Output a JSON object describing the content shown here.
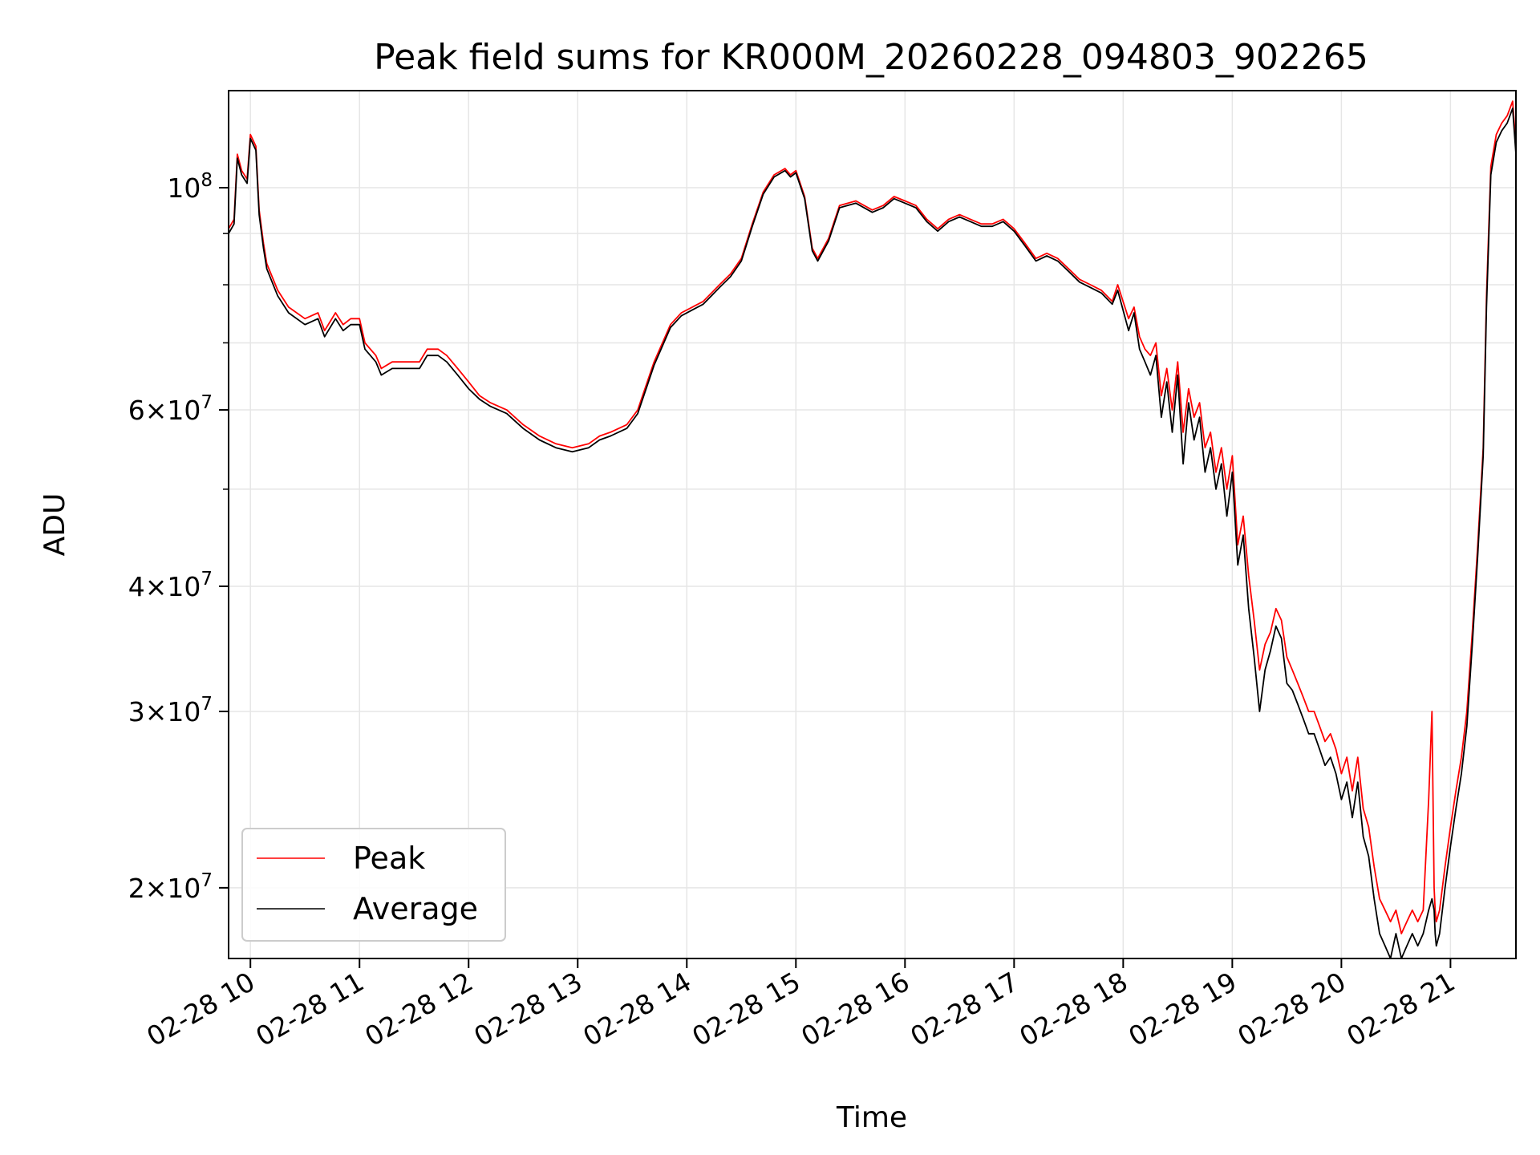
{
  "chart_data": {
    "type": "line",
    "title": "Peak field sums for KR000M_20260228_094803_902265",
    "xlabel": "Time",
    "ylabel": "ADU",
    "yscale": "log",
    "xlim": [
      9.8,
      21.6
    ],
    "ylim": [
      17000000,
      125000000
    ],
    "grid": true,
    "legend_location": "lower-left",
    "x_tick_values": [
      10,
      11,
      12,
      13,
      14,
      15,
      16,
      17,
      18,
      19,
      20,
      21
    ],
    "x_tick_labels": [
      "02-28 10",
      "02-28 11",
      "02-28 12",
      "02-28 13",
      "02-28 14",
      "02-28 15",
      "02-28 16",
      "02-28 17",
      "02-28 18",
      "02-28 19",
      "02-28 20",
      "02-28 21"
    ],
    "y_major_ticks": [
      {
        "value": 100000000,
        "mantissa": "",
        "base": "10",
        "exponent": "8"
      },
      {
        "value": 60000000,
        "mantissa": "6",
        "base": "10",
        "exponent": "7"
      },
      {
        "value": 40000000,
        "mantissa": "4",
        "base": "10",
        "exponent": "7"
      },
      {
        "value": 30000000,
        "mantissa": "3",
        "base": "10",
        "exponent": "7"
      },
      {
        "value": 20000000,
        "mantissa": "2",
        "base": "10",
        "exponent": "7"
      }
    ],
    "y_minor_ticks": [
      50000000,
      70000000,
      80000000,
      90000000
    ],
    "x_unit_note": "hours of day on 2026-02-28",
    "series": [
      {
        "name": "Peak",
        "color": "#ff0000",
        "x": [
          9.8,
          9.85,
          9.88,
          9.92,
          9.97,
          10.0,
          10.05,
          10.08,
          10.12,
          10.15,
          10.25,
          10.35,
          10.5,
          10.62,
          10.68,
          10.78,
          10.85,
          10.92,
          11.0,
          11.05,
          11.15,
          11.2,
          11.3,
          11.4,
          11.55,
          11.62,
          11.72,
          11.8,
          11.9,
          12.0,
          12.1,
          12.2,
          12.35,
          12.5,
          12.65,
          12.8,
          12.95,
          13.1,
          13.2,
          13.3,
          13.45,
          13.55,
          13.7,
          13.85,
          13.95,
          14.05,
          14.15,
          14.3,
          14.4,
          14.5,
          14.6,
          14.7,
          14.8,
          14.9,
          14.95,
          15.0,
          15.08,
          15.15,
          15.2,
          15.3,
          15.4,
          15.55,
          15.7,
          15.8,
          15.9,
          16.0,
          16.1,
          16.2,
          16.3,
          16.4,
          16.5,
          16.6,
          16.7,
          16.8,
          16.9,
          17.0,
          17.1,
          17.2,
          17.3,
          17.4,
          17.5,
          17.6,
          17.7,
          17.8,
          17.9,
          17.95,
          18.05,
          18.1,
          18.15,
          18.2,
          18.25,
          18.3,
          18.35,
          18.4,
          18.45,
          18.5,
          18.55,
          18.6,
          18.65,
          18.7,
          18.75,
          18.8,
          18.85,
          18.9,
          18.95,
          19.0,
          19.05,
          19.1,
          19.15,
          19.2,
          19.25,
          19.3,
          19.35,
          19.4,
          19.45,
          19.5,
          19.55,
          19.6,
          19.65,
          19.7,
          19.75,
          19.8,
          19.85,
          19.9,
          19.95,
          20.0,
          20.05,
          20.1,
          20.15,
          20.2,
          20.25,
          20.3,
          20.35,
          20.4,
          20.45,
          20.5,
          20.55,
          20.6,
          20.65,
          20.7,
          20.75,
          20.8,
          20.83,
          20.85,
          20.86,
          20.87,
          20.9,
          20.95,
          21.0,
          21.05,
          21.1,
          21.15,
          21.2,
          21.25,
          21.3,
          21.33,
          21.37,
          21.42,
          21.47,
          21.52,
          21.57,
          21.6
        ],
        "values": [
          91000000,
          93000000,
          108000000,
          104000000,
          102000000,
          113000000,
          110000000,
          95000000,
          88000000,
          84000000,
          79000000,
          76000000,
          74000000,
          75000000,
          72000000,
          75000000,
          73000000,
          74000000,
          74000000,
          70000000,
          68000000,
          66000000,
          67000000,
          67000000,
          67000000,
          69000000,
          69000000,
          68000000,
          66000000,
          64000000,
          62000000,
          61000000,
          60000000,
          58000000,
          56500000,
          55500000,
          55000000,
          55500000,
          56500000,
          57000000,
          58000000,
          60000000,
          67000000,
          73000000,
          75000000,
          76000000,
          77000000,
          80000000,
          82000000,
          85000000,
          92000000,
          99000000,
          103000000,
          104500000,
          103000000,
          104000000,
          98000000,
          87000000,
          85000000,
          89000000,
          96000000,
          97000000,
          95000000,
          96000000,
          98000000,
          97000000,
          96000000,
          93000000,
          91000000,
          93000000,
          94000000,
          93000000,
          92000000,
          92000000,
          93000000,
          91000000,
          88000000,
          85000000,
          86000000,
          85000000,
          83000000,
          81000000,
          80000000,
          79000000,
          77000000,
          80000000,
          74000000,
          76000000,
          71000000,
          69000000,
          68000000,
          70000000,
          62000000,
          66000000,
          60000000,
          67000000,
          57000000,
          63000000,
          59000000,
          61000000,
          55000000,
          57000000,
          52000000,
          55000000,
          50000000,
          54000000,
          44000000,
          47000000,
          41000000,
          37000000,
          33000000,
          35000000,
          36000000,
          38000000,
          37000000,
          34000000,
          33000000,
          32000000,
          31000000,
          30000000,
          30000000,
          29000000,
          28000000,
          28500000,
          27500000,
          26000000,
          27000000,
          25000000,
          27000000,
          24000000,
          23000000,
          21000000,
          19500000,
          19000000,
          18500000,
          19000000,
          18000000,
          18500000,
          19000000,
          18500000,
          19000000,
          24500000,
          30000000,
          20000000,
          19000000,
          18500000,
          19000000,
          21000000,
          23000000,
          25000000,
          27000000,
          30000000,
          36000000,
          44000000,
          55000000,
          78000000,
          105000000,
          113000000,
          116000000,
          118000000,
          122000000,
          110000000
        ]
      },
      {
        "name": "Average",
        "color": "#000000",
        "x": [
          9.8,
          9.85,
          9.88,
          9.92,
          9.97,
          10.0,
          10.05,
          10.08,
          10.12,
          10.15,
          10.25,
          10.35,
          10.5,
          10.62,
          10.68,
          10.78,
          10.85,
          10.92,
          11.0,
          11.05,
          11.15,
          11.2,
          11.3,
          11.4,
          11.55,
          11.62,
          11.72,
          11.8,
          11.9,
          12.0,
          12.1,
          12.2,
          12.35,
          12.5,
          12.65,
          12.8,
          12.95,
          13.1,
          13.2,
          13.3,
          13.45,
          13.55,
          13.7,
          13.85,
          13.95,
          14.05,
          14.15,
          14.3,
          14.4,
          14.5,
          14.6,
          14.7,
          14.8,
          14.9,
          14.95,
          15.0,
          15.08,
          15.15,
          15.2,
          15.3,
          15.4,
          15.55,
          15.7,
          15.8,
          15.9,
          16.0,
          16.1,
          16.2,
          16.3,
          16.4,
          16.5,
          16.6,
          16.7,
          16.8,
          16.9,
          17.0,
          17.1,
          17.2,
          17.3,
          17.4,
          17.5,
          17.6,
          17.7,
          17.8,
          17.9,
          17.95,
          18.05,
          18.1,
          18.15,
          18.2,
          18.25,
          18.3,
          18.35,
          18.4,
          18.45,
          18.5,
          18.55,
          18.6,
          18.65,
          18.7,
          18.75,
          18.8,
          18.85,
          18.9,
          18.95,
          19.0,
          19.05,
          19.1,
          19.15,
          19.2,
          19.25,
          19.3,
          19.35,
          19.4,
          19.45,
          19.5,
          19.55,
          19.6,
          19.65,
          19.7,
          19.75,
          19.8,
          19.85,
          19.9,
          19.95,
          20.0,
          20.05,
          20.1,
          20.15,
          20.2,
          20.25,
          20.3,
          20.35,
          20.4,
          20.45,
          20.5,
          20.55,
          20.6,
          20.65,
          20.7,
          20.75,
          20.8,
          20.83,
          20.85,
          20.86,
          20.87,
          20.9,
          20.95,
          21.0,
          21.05,
          21.1,
          21.15,
          21.2,
          21.25,
          21.3,
          21.33,
          21.37,
          21.42,
          21.47,
          21.52,
          21.57,
          21.6
        ],
        "values": [
          90000000,
          92000000,
          107000000,
          103000000,
          101000000,
          112000000,
          109000000,
          94000000,
          87000000,
          83000000,
          78000000,
          75000000,
          73000000,
          74000000,
          71000000,
          74000000,
          72000000,
          73000000,
          73000000,
          69000000,
          67000000,
          65000000,
          66000000,
          66000000,
          66000000,
          68000000,
          68000000,
          67000000,
          65000000,
          63000000,
          61500000,
          60500000,
          59500000,
          57500000,
          56000000,
          55000000,
          54500000,
          55000000,
          56000000,
          56500000,
          57500000,
          59500000,
          66500000,
          72500000,
          74500000,
          75500000,
          76500000,
          79500000,
          81500000,
          84500000,
          91500000,
          98500000,
          102500000,
          104000000,
          102500000,
          103500000,
          97500000,
          86500000,
          84500000,
          88500000,
          95500000,
          96500000,
          94500000,
          95500000,
          97500000,
          96500000,
          95500000,
          92500000,
          90500000,
          92500000,
          93500000,
          92500000,
          91500000,
          91500000,
          92500000,
          90500000,
          87500000,
          84500000,
          85500000,
          84500000,
          82500000,
          80500000,
          79500000,
          78500000,
          76500000,
          79000000,
          72000000,
          75000000,
          69000000,
          67000000,
          65000000,
          68000000,
          59000000,
          64000000,
          57000000,
          65000000,
          53000000,
          61000000,
          56000000,
          59000000,
          52000000,
          55000000,
          50000000,
          53000000,
          47000000,
          52000000,
          42000000,
          45000000,
          38000000,
          34000000,
          30000000,
          33000000,
          34500000,
          36500000,
          35500000,
          32000000,
          31500000,
          30500000,
          29500000,
          28500000,
          28500000,
          27500000,
          26500000,
          27000000,
          26000000,
          24500000,
          25500000,
          23500000,
          25500000,
          22500000,
          21500000,
          19500000,
          18000000,
          17500000,
          17000000,
          18000000,
          17000000,
          17500000,
          18000000,
          17500000,
          18000000,
          19000000,
          19500000,
          19000000,
          18000000,
          17500000,
          18000000,
          20000000,
          22000000,
          24000000,
          26000000,
          29000000,
          35000000,
          43000000,
          54000000,
          76000000,
          103000000,
          111000000,
          114000000,
          116000000,
          120000000,
          108000000
        ]
      }
    ]
  }
}
